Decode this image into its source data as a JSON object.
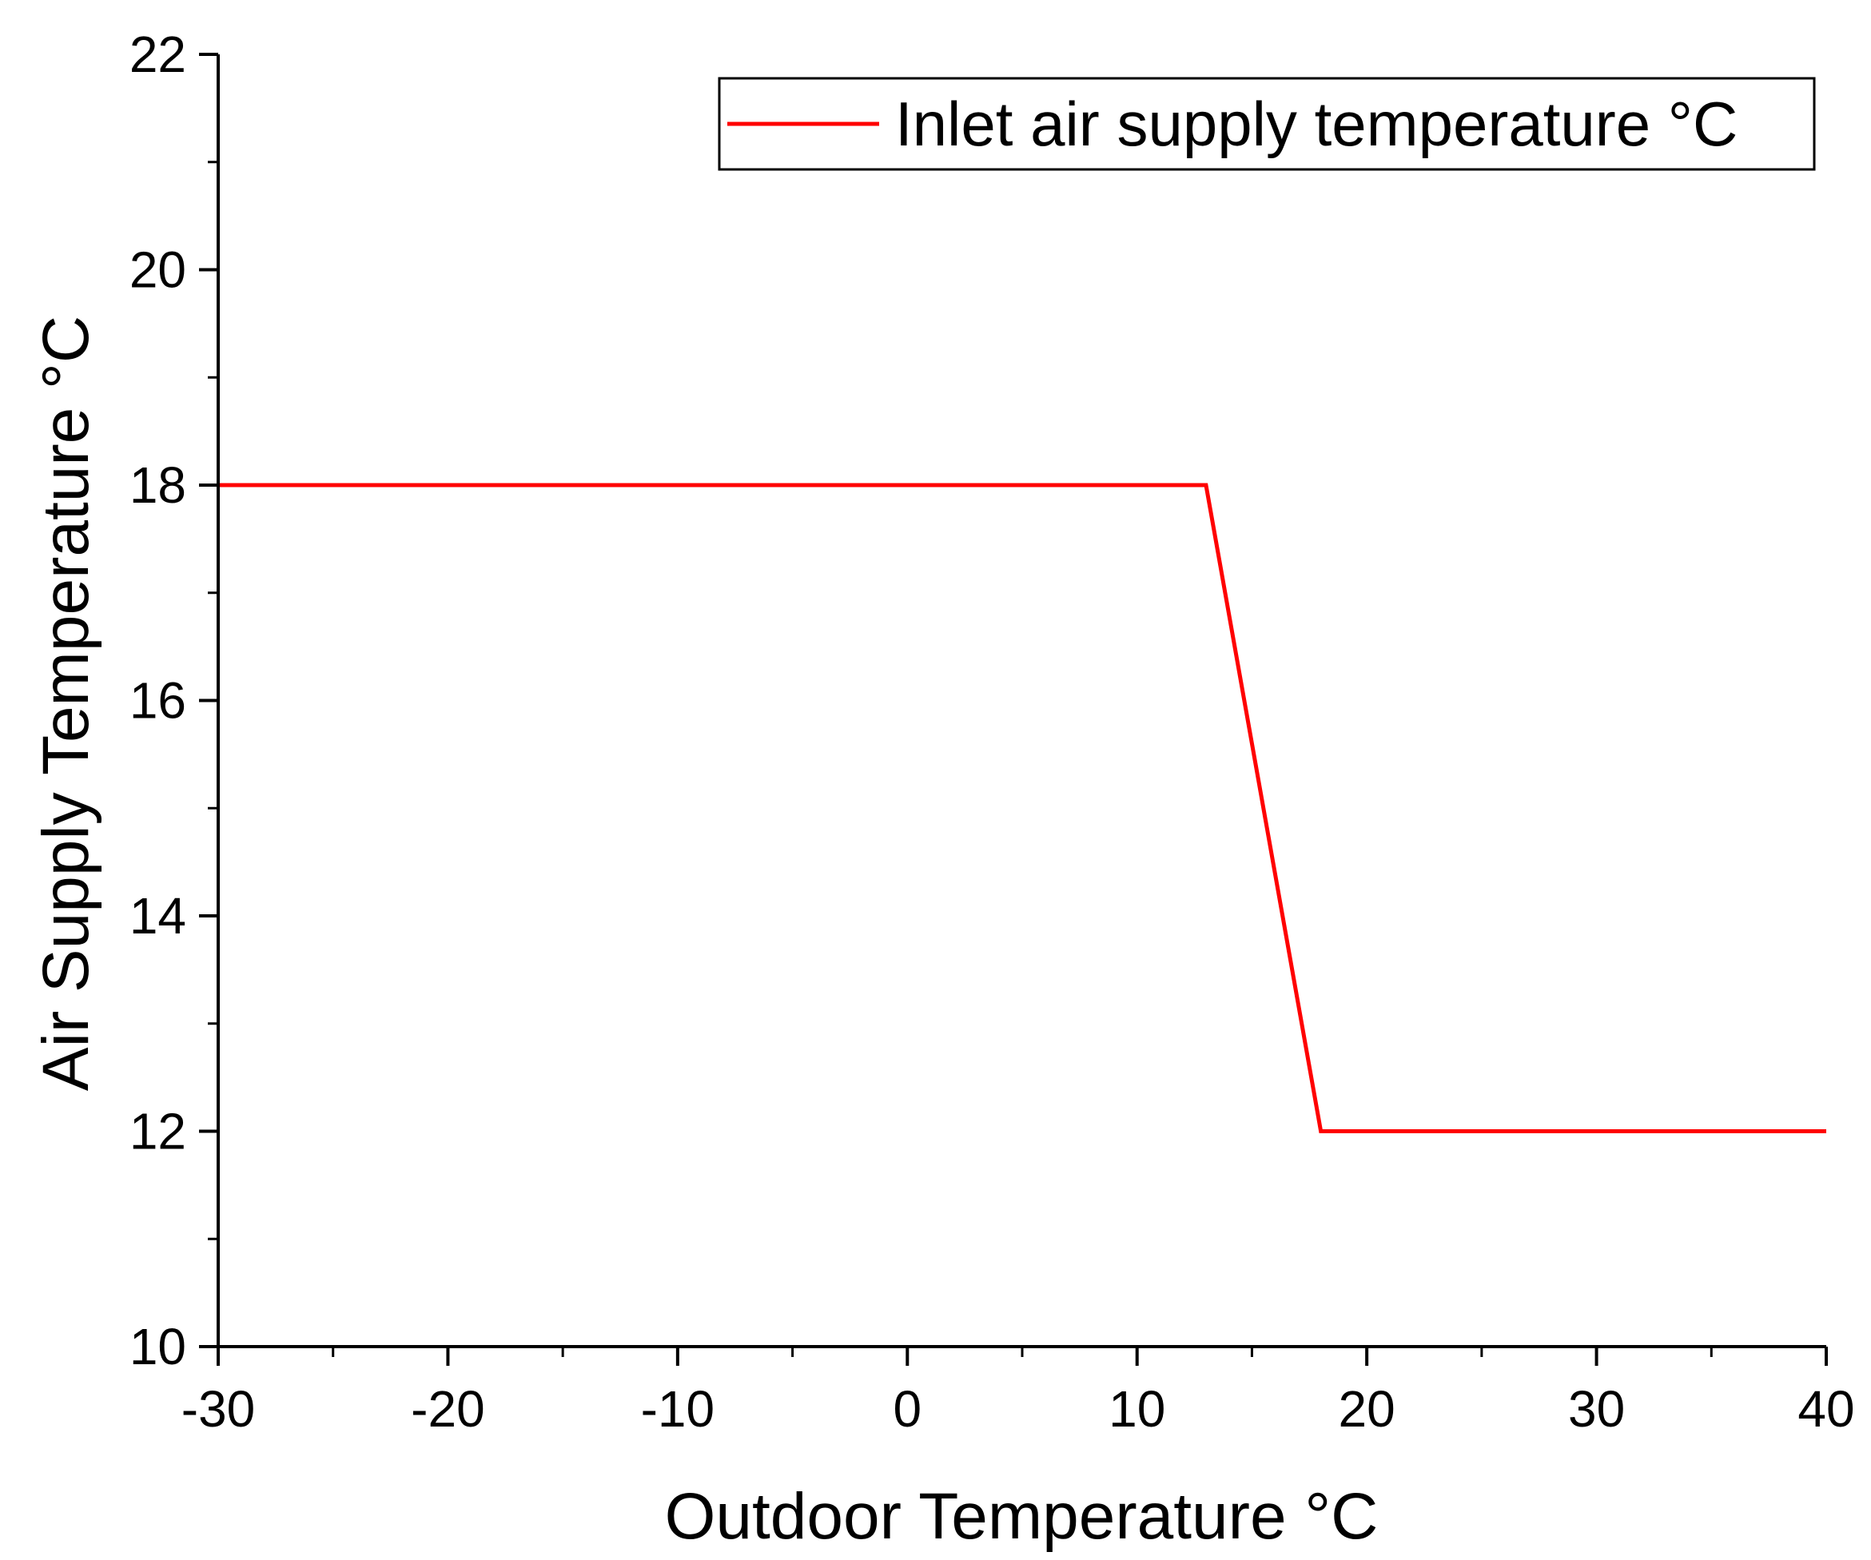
{
  "chart_data": {
    "type": "line",
    "xlabel": "Outdoor Temperature °C",
    "ylabel": "Air Supply Temperature °C",
    "xlim": [
      -30,
      40
    ],
    "ylim": [
      10,
      22
    ],
    "x_ticks": [
      -30,
      -20,
      -10,
      0,
      10,
      20,
      30,
      40
    ],
    "x_tick_labels": [
      "-30",
      "-20",
      "-10",
      "0",
      "10",
      "20",
      "30",
      "40"
    ],
    "y_ticks": [
      10,
      12,
      14,
      16,
      18,
      20,
      22
    ],
    "y_tick_labels": [
      "10",
      "12",
      "14",
      "16",
      "18",
      "20",
      "22"
    ],
    "grid": false,
    "legend_position": "top-right",
    "series": [
      {
        "name": "Inlet air supply temperature °C",
        "color": "#ff0000",
        "x": [
          -30,
          13,
          18,
          40
        ],
        "y": [
          18,
          18,
          12,
          12
        ]
      }
    ]
  }
}
